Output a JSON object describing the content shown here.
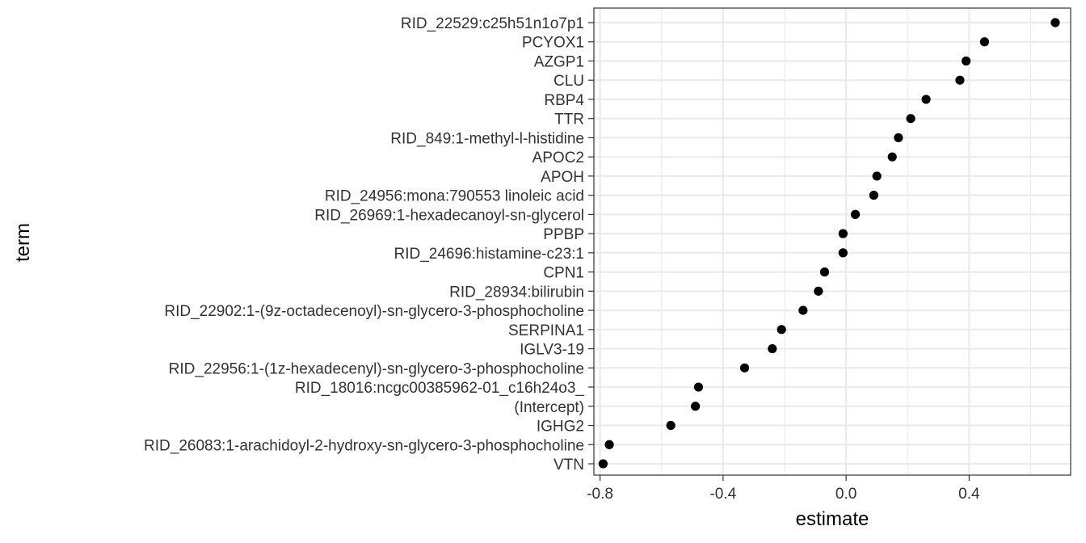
{
  "chart_data": {
    "type": "scatter",
    "title": "",
    "xlabel": "estimate",
    "ylabel": "term",
    "xlim": [
      -0.82,
      0.73
    ],
    "xticks": [
      -0.8,
      -0.4,
      0.0,
      0.4
    ],
    "xtick_labels": [
      "-0.8",
      "-0.4",
      "0.0",
      "0.4"
    ],
    "grid": true,
    "theme": "bw",
    "point_color": "#000000",
    "points": [
      {
        "term": "RID_22529:c25h51n1o7p1",
        "estimate": 0.68
      },
      {
        "term": "PCYOX1",
        "estimate": 0.45
      },
      {
        "term": "AZGP1",
        "estimate": 0.39
      },
      {
        "term": "CLU",
        "estimate": 0.37
      },
      {
        "term": "RBP4",
        "estimate": 0.26
      },
      {
        "term": "TTR",
        "estimate": 0.21
      },
      {
        "term": "RID_849:1-methyl-l-histidine",
        "estimate": 0.17
      },
      {
        "term": "APOC2",
        "estimate": 0.15
      },
      {
        "term": "APOH",
        "estimate": 0.1
      },
      {
        "term": "RID_24956:mona:790553 linoleic acid",
        "estimate": 0.09
      },
      {
        "term": "RID_26969:1-hexadecanoyl-sn-glycerol",
        "estimate": 0.03
      },
      {
        "term": "PPBP",
        "estimate": -0.01
      },
      {
        "term": "RID_24696:histamine-c23:1",
        "estimate": -0.01
      },
      {
        "term": "CPN1",
        "estimate": -0.07
      },
      {
        "term": "RID_28934:bilirubin",
        "estimate": -0.09
      },
      {
        "term": "RID_22902:1-(9z-octadecenoyl)-sn-glycero-3-phosphocholine",
        "estimate": -0.14
      },
      {
        "term": "SERPINA1",
        "estimate": -0.21
      },
      {
        "term": "IGLV3-19",
        "estimate": -0.24
      },
      {
        "term": "RID_22956:1-(1z-hexadecenyl)-sn-glycero-3-phosphocholine",
        "estimate": -0.33
      },
      {
        "term": "RID_18016:ncgc00385962-01_c16h24o3_",
        "estimate": -0.48
      },
      {
        "term": "(Intercept)",
        "estimate": -0.49
      },
      {
        "term": "IGHG2",
        "estimate": -0.57
      },
      {
        "term": "RID_26083:1-arachidoyl-2-hydroxy-sn-glycero-3-phosphocholine",
        "estimate": -0.77
      },
      {
        "term": "VTN",
        "estimate": -0.79
      }
    ]
  }
}
